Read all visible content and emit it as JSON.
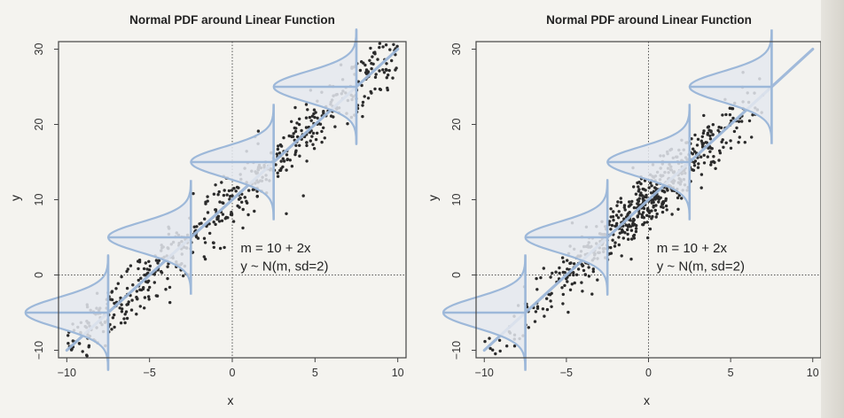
{
  "colors": {
    "points": "#2b2b2b",
    "line": "#9db8d9",
    "density_fill": "#e4e7ef",
    "frame": "#444444",
    "background": "#f4f3ef"
  },
  "chart_data": [
    {
      "type": "scatter",
      "title": "Normal PDF around Linear Function",
      "xlabel": "x",
      "ylabel": "y",
      "xlim": [
        -10.5,
        10.5
      ],
      "ylim": [
        -11,
        31
      ],
      "xticks": [
        -10,
        -5,
        0,
        5,
        10
      ],
      "yticks": [
        -10,
        0,
        10,
        20,
        30
      ],
      "x_tick_labels": [
        "−10",
        "−5",
        "0",
        "5",
        "10"
      ],
      "y_tick_labels": [
        "−10",
        "0",
        "10",
        "20",
        "30"
      ],
      "reference_lines": {
        "x": 0,
        "y": 0,
        "style": "dotted"
      },
      "mean_function": {
        "intercept": 10,
        "slope": 2,
        "x_range": [
          -10,
          10
        ]
      },
      "density_curves": {
        "x_centers": [
          -7.5,
          -2.5,
          2.5,
          7.5
        ],
        "sd": 2
      },
      "points": {
        "n": 600,
        "x_distribution": "uniform",
        "x_range": [
          -10,
          10
        ],
        "noise_sd": 2
      },
      "annotation": [
        "m = 10 + 2x",
        "y ~ N(m, sd=2)"
      ]
    },
    {
      "type": "scatter",
      "title": "Normal PDF around Linear Function",
      "xlabel": "x",
      "ylabel": "y",
      "xlim": [
        -10.5,
        10.5
      ],
      "ylim": [
        -11,
        31
      ],
      "xticks": [
        -10,
        -5,
        0,
        5,
        10
      ],
      "yticks": [
        -10,
        0,
        10,
        20,
        30
      ],
      "x_tick_labels": [
        "−10",
        "−5",
        "0",
        "5",
        "10"
      ],
      "y_tick_labels": [
        "−10",
        "0",
        "10",
        "20",
        "30"
      ],
      "reference_lines": {
        "x": 0,
        "y": 0,
        "style": "dotted"
      },
      "mean_function": {
        "intercept": 10,
        "slope": 2,
        "x_range": [
          -10,
          10
        ]
      },
      "density_curves": {
        "x_centers": [
          -7.5,
          -2.5,
          2.5,
          7.5
        ],
        "sd": 2
      },
      "points": {
        "n": 600,
        "x_distribution": "centered",
        "x_range": [
          -10,
          7
        ],
        "noise_sd": 2
      },
      "annotation": [
        "m = 10 + 2x",
        "y ~ N(m, sd=2)"
      ]
    }
  ]
}
